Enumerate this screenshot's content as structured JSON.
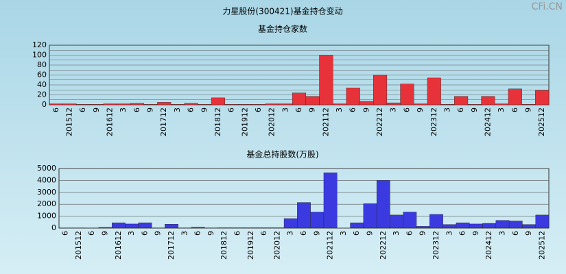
{
  "title": "力星股份(300421)基金持仓变动",
  "watermark": "CFi.CN",
  "chart_data": [
    {
      "type": "bar",
      "title": "基金持仓家数",
      "categories": [
        "6",
        "201512",
        "6",
        "9",
        "201612",
        "3",
        "6",
        "9",
        "201712",
        "3",
        "6",
        "9",
        "201812",
        "6",
        "201912",
        "6",
        "202012",
        "3",
        "6",
        "9",
        "202112",
        "3",
        "6",
        "9",
        "202212",
        "3",
        "6",
        "9",
        "202312",
        "3",
        "6",
        "9",
        "202412",
        "3",
        "6",
        "9",
        "202512"
      ],
      "values": [
        2,
        2,
        1,
        1,
        2,
        2,
        3,
        1,
        5,
        1,
        3,
        1,
        14,
        1,
        1,
        1,
        2,
        2,
        24,
        17,
        100,
        2,
        34,
        7,
        60,
        4,
        42,
        2,
        54,
        1,
        17,
        1,
        17,
        2,
        32,
        1,
        29
      ],
      "color": "#e8323a",
      "ylim": [
        0,
        120
      ],
      "yticks": [
        0,
        10,
        20,
        30,
        40,
        50,
        60,
        70,
        80,
        90,
        100,
        110,
        120
      ],
      "ylabels_every": 2,
      "grid": true
    },
    {
      "type": "bar",
      "title": "基金总持股数(万股)",
      "categories": [
        "6",
        "201512",
        "6",
        "9",
        "201612",
        "3",
        "6",
        "9",
        "201712",
        "3",
        "6",
        "9",
        "201812",
        "6",
        "201912",
        "6",
        "202012",
        "3",
        "6",
        "9",
        "202112",
        "3",
        "6",
        "9",
        "202212",
        "3",
        "6",
        "9",
        "202312",
        "3",
        "6",
        "9",
        "202412",
        "3",
        "6",
        "9",
        "202512"
      ],
      "values": [
        20,
        20,
        10,
        60,
        450,
        350,
        450,
        20,
        330,
        20,
        80,
        20,
        30,
        30,
        30,
        30,
        30,
        800,
        2150,
        1350,
        4650,
        0,
        450,
        2050,
        4000,
        1100,
        1350,
        150,
        1150,
        300,
        450,
        350,
        400,
        650,
        600,
        300,
        1100
      ],
      "color": "#3a3ae0",
      "ylim": [
        0,
        5000
      ],
      "yticks": [
        0,
        1000,
        2000,
        3000,
        4000,
        5000
      ],
      "ylabels_every": 1,
      "grid": true
    }
  ]
}
